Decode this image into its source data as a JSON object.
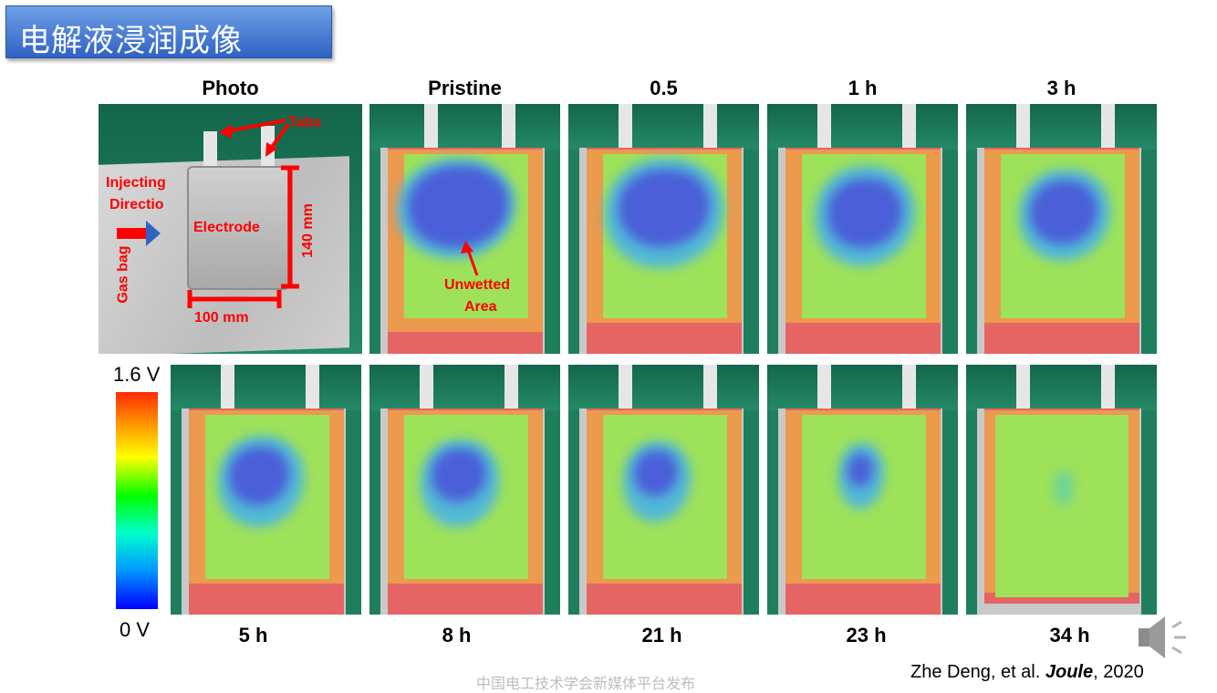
{
  "slide": {
    "title": "电解液浸润成像"
  },
  "panels": {
    "photo": {
      "label": "Photo",
      "annotations": {
        "tabs": "Tabs",
        "injecting": "Injecting",
        "direction": "Directio",
        "electrode": "Electrode",
        "gas_bag": "Gas bag",
        "height": "140 mm",
        "width": "100 mm"
      }
    },
    "top_row": [
      {
        "label": "Pristine"
      },
      {
        "label": "0.5"
      },
      {
        "label": "1 h"
      },
      {
        "label": "3 h"
      }
    ],
    "bottom_row": [
      {
        "label": "5 h"
      },
      {
        "label": "8 h"
      },
      {
        "label": "21 h"
      },
      {
        "label": "23 h"
      },
      {
        "label": "34 h"
      }
    ],
    "unwetted_line1": "Unwetted",
    "unwetted_line2": "Area"
  },
  "colorbar": {
    "max_label": "1.6 V",
    "min_label": "0 V"
  },
  "citation": {
    "authors": "Zhe Deng, et al. ",
    "journal": "Joule",
    "year": ", 2020"
  },
  "watermark": "中国电工技术学会新媒体平台发布",
  "icons": {
    "speaker": "speaker-icon"
  }
}
